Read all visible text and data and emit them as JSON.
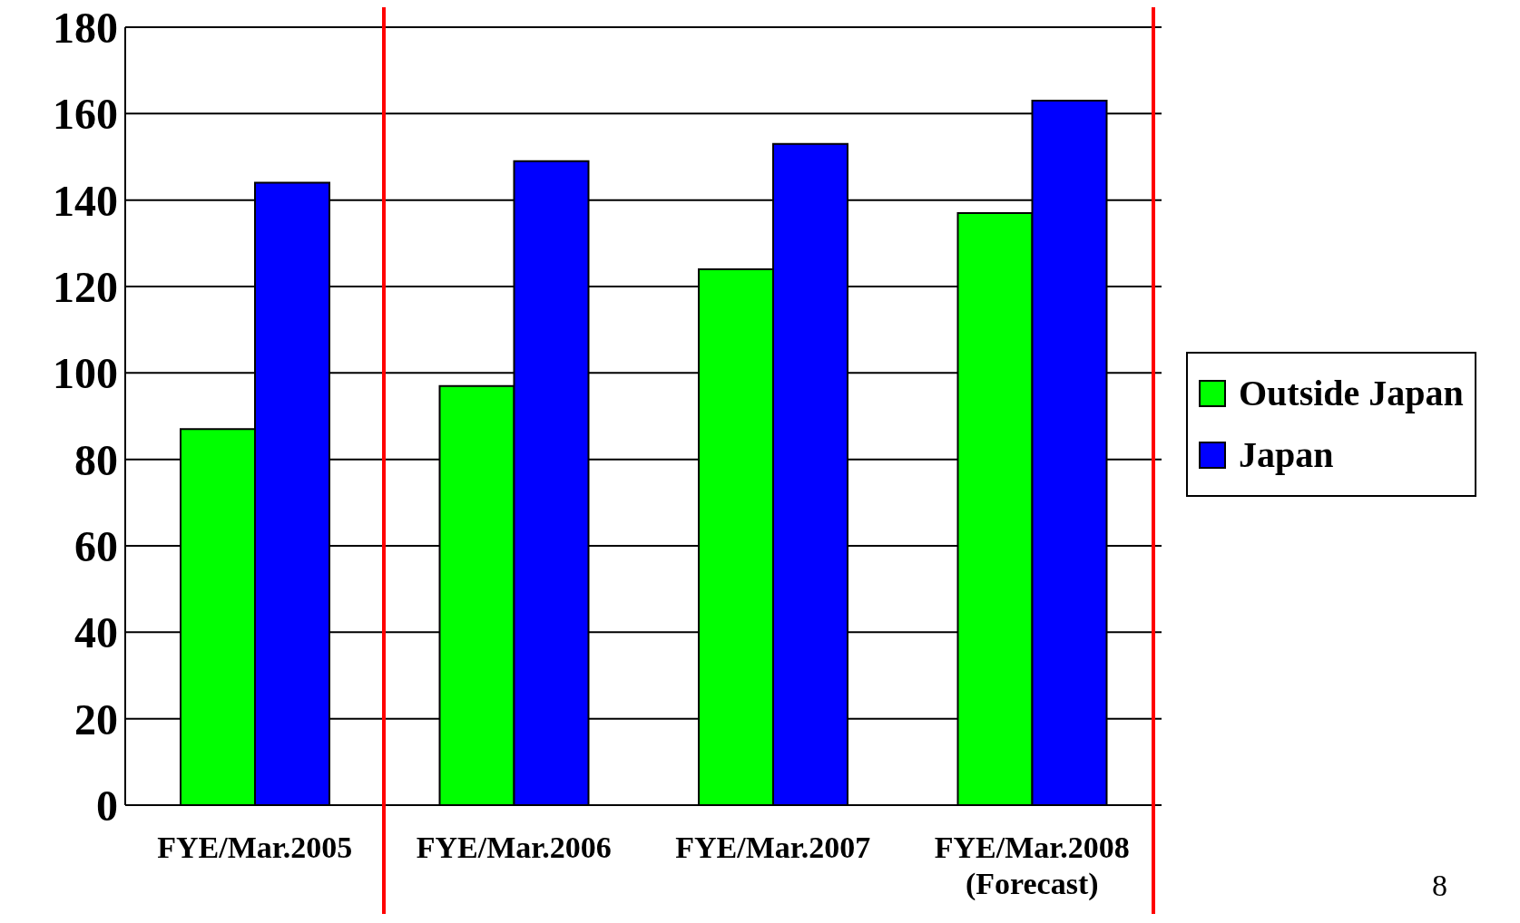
{
  "chart_data": {
    "type": "bar",
    "categories": [
      "FYE/Mar.2005",
      "FYE/Mar.2006",
      "FYE/Mar.2007",
      "FYE/Mar.2008\n(Forecast)"
    ],
    "series": [
      {
        "name": "Outside Japan",
        "color": "#00ff00",
        "values": [
          87,
          97,
          124,
          137
        ]
      },
      {
        "name": "Japan",
        "color": "#0000ff",
        "values": [
          144,
          149,
          153,
          163
        ]
      }
    ],
    "ylim": [
      0,
      180
    ],
    "yticks": [
      0,
      20,
      40,
      60,
      80,
      100,
      120,
      140,
      160,
      180
    ],
    "grid": "y",
    "legend": "right",
    "annotations": [
      "8"
    ]
  }
}
